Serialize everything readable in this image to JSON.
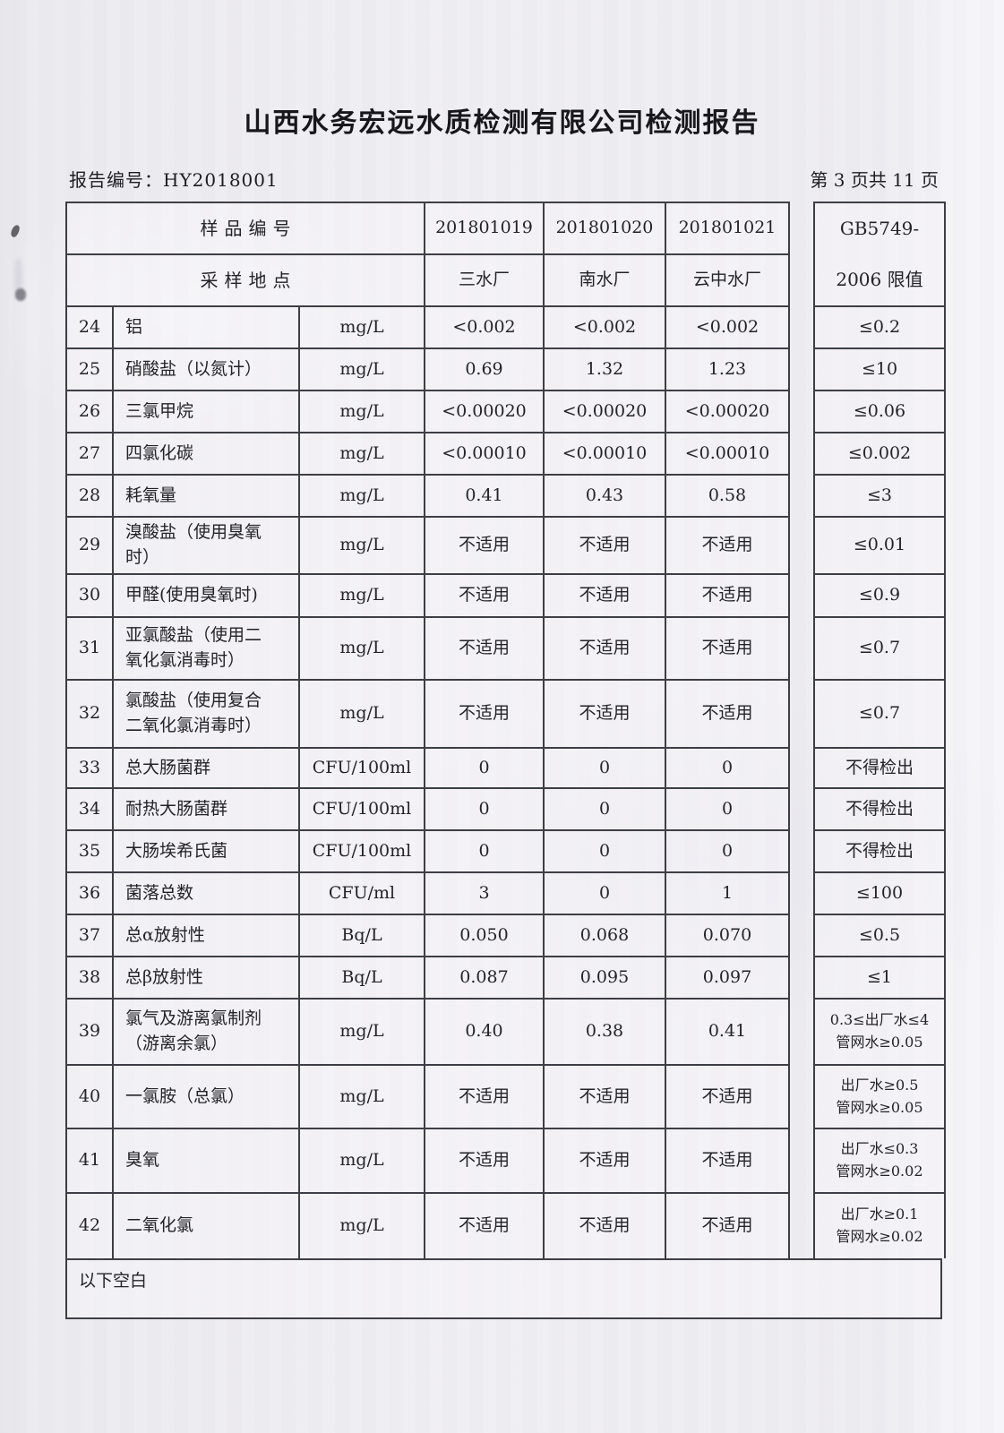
{
  "page": {
    "title": "山西水务宏远水质检测有限公司检测报告",
    "report_no": "报告编号：HY2018001",
    "page_indicator": "第 3 页共 11 页"
  },
  "table": {
    "header": {
      "sample_row_label": "样品编号",
      "site_row_label": "采样地点",
      "sample_ids": [
        "201801019",
        "201801020",
        "201801021"
      ],
      "sites": [
        "三水厂",
        "南水厂",
        "云中水厂"
      ],
      "limit_line1": "GB5749-",
      "limit_line2": "2006 限值"
    },
    "rows": [
      {
        "no": "24",
        "name": "铝",
        "unit": "mg/L",
        "v": [
          "<0.002",
          "<0.002",
          "<0.002"
        ],
        "limit": "≤0.2"
      },
      {
        "no": "25",
        "name": "硝酸盐（以氮计）",
        "unit": "mg/L",
        "v": [
          "0.69",
          "1.32",
          "1.23"
        ],
        "limit": "≤10"
      },
      {
        "no": "26",
        "name": "三氯甲烷",
        "unit": "mg/L",
        "v": [
          "<0.00020",
          "<0.00020",
          "<0.00020"
        ],
        "limit": "≤0.06"
      },
      {
        "no": "27",
        "name": "四氯化碳",
        "unit": "mg/L",
        "v": [
          "<0.00010",
          "<0.00010",
          "<0.00010"
        ],
        "limit": "≤0.002"
      },
      {
        "no": "28",
        "name": "耗氧量",
        "unit": "mg/L",
        "v": [
          "0.41",
          "0.43",
          "0.58"
        ],
        "limit": "≤3"
      },
      {
        "no": "29",
        "name": "溴酸盐（使用臭氧\n时）",
        "unit": "mg/L",
        "v": [
          "不适用",
          "不适用",
          "不适用"
        ],
        "limit": "≤0.01"
      },
      {
        "no": "30",
        "name": "甲醛(使用臭氧时)",
        "unit": "mg/L",
        "v": [
          "不适用",
          "不适用",
          "不适用"
        ],
        "limit": "≤0.9"
      },
      {
        "no": "31",
        "name": "亚氯酸盐（使用二\n氧化氯消毒时）",
        "unit": "mg/L",
        "v": [
          "不适用",
          "不适用",
          "不适用"
        ],
        "limit": "≤0.7"
      },
      {
        "no": "32",
        "name": "氯酸盐（使用复合\n二氧化氯消毒时）",
        "unit": "mg/L",
        "v": [
          "不适用",
          "不适用",
          "不适用"
        ],
        "limit": "≤0.7"
      },
      {
        "no": "33",
        "name": "总大肠菌群",
        "unit": "CFU/100ml",
        "v": [
          "0",
          "0",
          "0"
        ],
        "limit": "不得检出"
      },
      {
        "no": "34",
        "name": "耐热大肠菌群",
        "unit": "CFU/100ml",
        "v": [
          "0",
          "0",
          "0"
        ],
        "limit": "不得检出"
      },
      {
        "no": "35",
        "name": "大肠埃希氏菌",
        "unit": "CFU/100ml",
        "v": [
          "0",
          "0",
          "0"
        ],
        "limit": "不得检出"
      },
      {
        "no": "36",
        "name": "菌落总数",
        "unit": "CFU/ml",
        "v": [
          "3",
          "0",
          "1"
        ],
        "limit": "≤100"
      },
      {
        "no": "37",
        "name": "总α放射性",
        "unit": "Bq/L",
        "v": [
          "0.050",
          "0.068",
          "0.070"
        ],
        "limit": "≤0.5"
      },
      {
        "no": "38",
        "name": "总β放射性",
        "unit": "Bq/L",
        "v": [
          "0.087",
          "0.095",
          "0.097"
        ],
        "limit": "≤1"
      },
      {
        "no": "39",
        "name": "氯气及游离氯制剂\n（游离余氯）",
        "unit": "mg/L",
        "v": [
          "0.40",
          "0.38",
          "0.41"
        ],
        "limit": "0.3≤出厂水≤4\n管网水≥0.05"
      },
      {
        "no": "40",
        "name": "一氯胺（总氯）",
        "unit": "mg/L",
        "v": [
          "不适用",
          "不适用",
          "不适用"
        ],
        "limit": "出厂水≥0.5\n管网水≥0.05"
      },
      {
        "no": "41",
        "name": "臭氧",
        "unit": "mg/L",
        "v": [
          "不适用",
          "不适用",
          "不适用"
        ],
        "limit": "出厂水≤0.3\n管网水≥0.02"
      },
      {
        "no": "42",
        "name": "二氧化氯",
        "unit": "mg/L",
        "v": [
          "不适用",
          "不适用",
          "不适用"
        ],
        "limit": "出厂水≥0.1\n管网水≥0.02"
      }
    ],
    "footer_note": "以下空白"
  }
}
